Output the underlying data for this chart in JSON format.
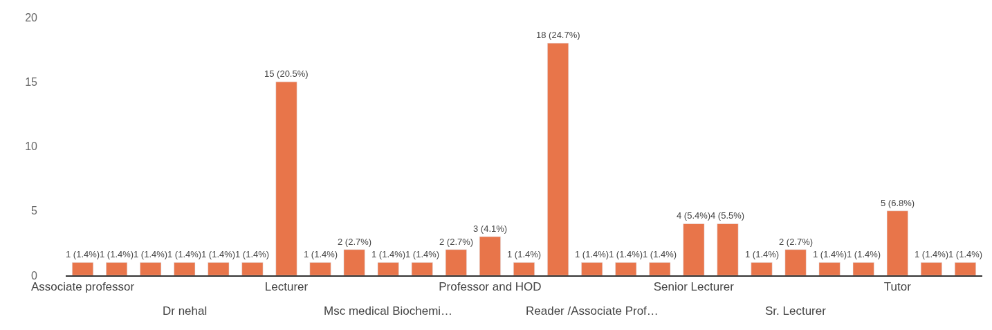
{
  "chart_data": {
    "type": "bar",
    "categories": [
      "Associate professor",
      null,
      null,
      "Dr nehal",
      null,
      null,
      "Lecturer",
      null,
      null,
      "Msc medical Biochemi…",
      null,
      null,
      "Professor and HOD",
      null,
      null,
      "Reader /Associate Prof…",
      null,
      null,
      "Senior Lecturer",
      null,
      null,
      "Sr. Lecturer",
      null,
      null,
      "Tutor",
      null,
      null
    ],
    "values": [
      1,
      1,
      1,
      1,
      1,
      1,
      15,
      1,
      2,
      1,
      1,
      2,
      3,
      1,
      18,
      1,
      1,
      1,
      4,
      4,
      1,
      2,
      1,
      1,
      5,
      1,
      1
    ],
    "value_labels": [
      "1 (1.4%)",
      "1 (1.4%)",
      "1 (1.4%)",
      "1 (1.4%)",
      "1 (1.4%)",
      "1 (1.4%)",
      "15 (20.5%)",
      "1 (1.4%)",
      "2 (2.7%)",
      "1 (1.4%)",
      "1 (1.4%)",
      "2 (2.7%)",
      "3 (4.1%)",
      "1 (1.4%)",
      "18 (24.7%)",
      "1 (1.4%)",
      "1 (1.4%)",
      "1 (1.4%)",
      "4 (5.4%)",
      "4 (5.5%)",
      "1 (1.4%)",
      "2 (2.7%)",
      "1 (1.4%)",
      "1 (1.4%)",
      "5 (6.8%)",
      "1 (1.4%)",
      "1 (1.4%)"
    ],
    "color": "#e8754a",
    "ylim": [
      0,
      20
    ],
    "yticks": [
      0,
      5,
      10,
      15,
      20
    ],
    "grid": false,
    "legend": false
  }
}
